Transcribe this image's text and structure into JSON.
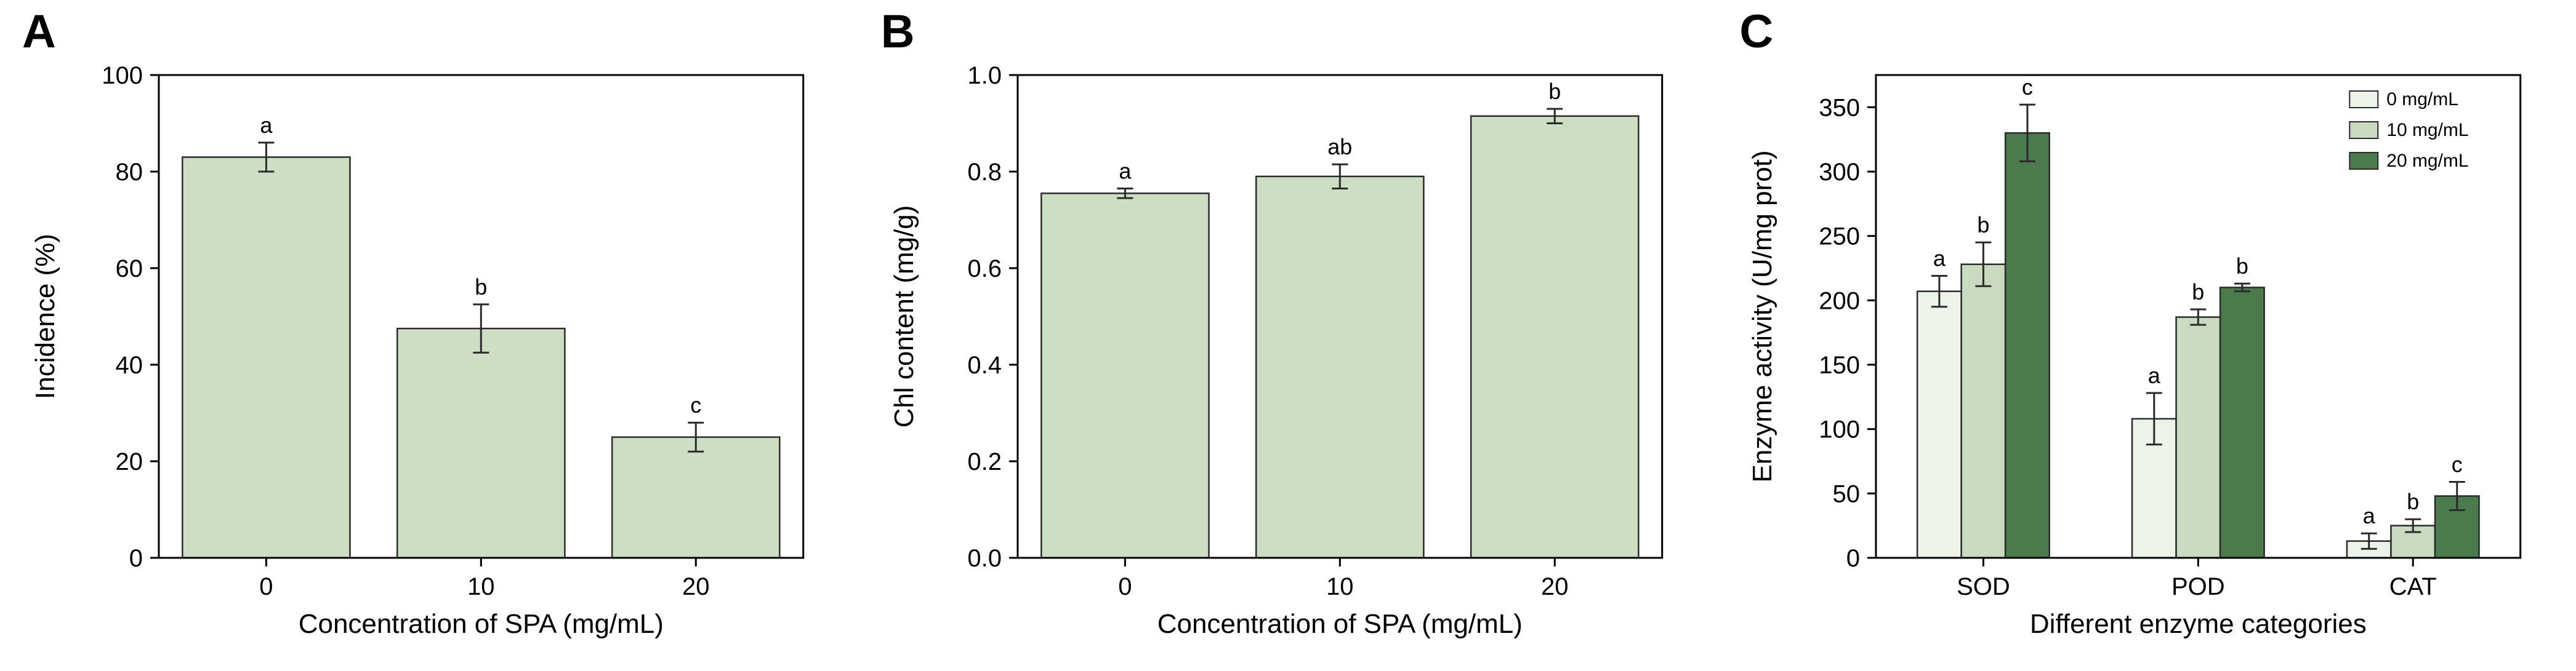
{
  "figure": {
    "background": "#ffffff",
    "axis_color": "#000000",
    "bar_stroke": "#2a2a2a"
  },
  "chart_data": [
    {
      "panel": "A",
      "type": "bar",
      "title": "",
      "xlabel": "Concentration of SPA (mg/mL)",
      "ylabel": "Incidence (%)",
      "categories": [
        "0",
        "10",
        "20"
      ],
      "values": [
        83,
        47.5,
        25
      ],
      "errors": [
        3,
        5,
        3
      ],
      "sig_letters": [
        "a",
        "b",
        "c"
      ],
      "ylim": [
        0,
        100
      ],
      "yticks": [
        0,
        20,
        40,
        60,
        80,
        100
      ],
      "ytick_format": "int",
      "bar_color": "#cddec5",
      "grid": false,
      "legend": null
    },
    {
      "panel": "B",
      "type": "bar",
      "title": "",
      "xlabel": "Concentration of SPA (mg/mL)",
      "ylabel": "Chl content (mg/g)",
      "categories": [
        "0",
        "10",
        "20"
      ],
      "values": [
        0.755,
        0.79,
        0.915
      ],
      "errors": [
        0.01,
        0.025,
        0.015
      ],
      "sig_letters": [
        "a",
        "ab",
        "b"
      ],
      "ylim": [
        0,
        1.0
      ],
      "yticks": [
        0,
        0.2,
        0.4,
        0.6,
        0.8,
        1.0
      ],
      "ytick_format": "1dp",
      "bar_color": "#cddec5",
      "grid": false,
      "legend": null
    },
    {
      "panel": "C",
      "type": "grouped-bar",
      "title": "",
      "xlabel": "Different enzyme categories",
      "ylabel": "Enzyme activity (U/mg prot)",
      "categories": [
        "SOD",
        "POD",
        "CAT"
      ],
      "series": [
        {
          "name": "0 mg/mL",
          "color": "#eef3e9",
          "values": [
            207,
            108,
            13
          ],
          "errors": [
            12,
            20,
            6
          ],
          "sig_letters": [
            "a",
            "a",
            "a"
          ]
        },
        {
          "name": "10 mg/mL",
          "color": "#c8dabf",
          "values": [
            228,
            187,
            25
          ],
          "errors": [
            17,
            6,
            5
          ],
          "sig_letters": [
            "b",
            "b",
            "b"
          ]
        },
        {
          "name": "20 mg/mL",
          "color": "#4a7a4e",
          "values": [
            330,
            210,
            48
          ],
          "errors": [
            22,
            3,
            11
          ],
          "sig_letters": [
            "c",
            "b",
            "c"
          ]
        }
      ],
      "ylim": [
        0,
        375
      ],
      "yticks": [
        0,
        50,
        100,
        150,
        200,
        250,
        300,
        350
      ],
      "ytick_format": "int",
      "grid": false,
      "legend": {
        "position": "top-right"
      }
    }
  ]
}
